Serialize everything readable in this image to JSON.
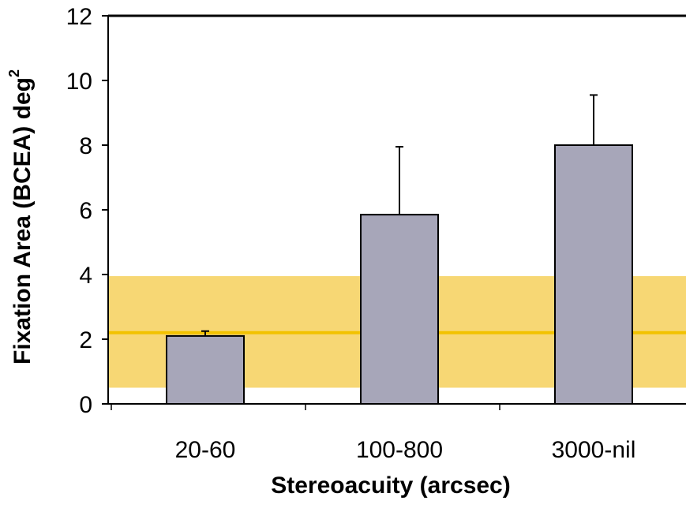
{
  "chart_data": {
    "type": "bar",
    "categories": [
      "20-60",
      "100-800",
      "3000-nil"
    ],
    "values": [
      2.1,
      5.85,
      8.0
    ],
    "error_upper": [
      2.25,
      7.95,
      9.55
    ],
    "xlabel": "Stereoacuity (arcsec)",
    "ylabel": "Fixation Area (BCEA) deg²",
    "ylabel_main": "Fixation Area (BCEA) deg",
    "ylabel_sup": "2",
    "ylim": [
      0,
      12
    ],
    "yticks": [
      0,
      2,
      4,
      6,
      8,
      10,
      12
    ],
    "grid": false,
    "reference_band": {
      "low": 0.5,
      "high": 3.95,
      "color": "#f7d774"
    },
    "reference_line": {
      "value": 2.2,
      "color": "#f2c200"
    },
    "bar_color": "#a7a6b9",
    "bar_edge_color": "#000000"
  }
}
